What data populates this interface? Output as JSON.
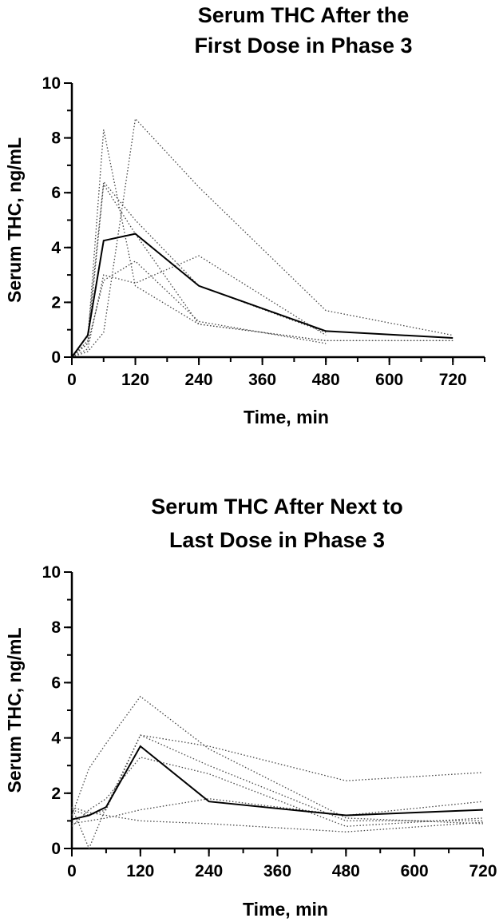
{
  "chart_data": [
    {
      "type": "line",
      "title": "Serum THC After the\nFirst Dose in Phase 3",
      "xlabel": "Time, min",
      "ylabel": "Serum THC, ng/mL",
      "xlim": [
        0,
        780
      ],
      "ylim": [
        0,
        10
      ],
      "xticks": [
        0,
        120,
        240,
        360,
        480,
        600,
        720
      ],
      "yticks": [
        0,
        2,
        4,
        6,
        8,
        10
      ],
      "x_minor_step": 60,
      "y_minor_step": 1,
      "series": [
        {
          "style": "dotted",
          "x": [
            0,
            30,
            60,
            120,
            240,
            480,
            720
          ],
          "y": [
            0,
            0.6,
            8.3,
            2.6,
            1.2,
            0.6,
            0.6
          ]
        },
        {
          "style": "dotted",
          "x": [
            0,
            30,
            60,
            120,
            240,
            480,
            720
          ],
          "y": [
            0,
            0.2,
            0.9,
            8.7,
            6.2,
            1.7,
            0.8
          ]
        },
        {
          "style": "dotted",
          "x": [
            0,
            30,
            60,
            120,
            240,
            480,
            720
          ],
          "y": [
            0,
            0.5,
            6.3,
            4.5,
            1.2,
            0.6,
            0.6
          ]
        },
        {
          "style": "dotted",
          "x": [
            0,
            30,
            60,
            120,
            240,
            480
          ],
          "y": [
            0,
            0.8,
            6.4,
            5.0,
            2.6,
            0.9
          ]
        },
        {
          "style": "dotted",
          "x": [
            0,
            30,
            60,
            120,
            240,
            480
          ],
          "y": [
            0,
            0.5,
            2.8,
            3.5,
            1.3,
            0.5
          ]
        },
        {
          "style": "dotted",
          "x": [
            0,
            30,
            60,
            120,
            240,
            480
          ],
          "y": [
            0,
            0.3,
            3.0,
            2.7,
            3.7,
            0.8
          ]
        },
        {
          "style": "solid",
          "x": [
            0,
            30,
            60,
            120,
            240,
            480,
            720
          ],
          "y": [
            0,
            0.8,
            4.25,
            4.5,
            2.6,
            0.95,
            0.7
          ]
        }
      ]
    },
    {
      "type": "line",
      "title": "Serum THC After Next to\nLast  Dose in Phase 3",
      "xlabel": "Time, min",
      "ylabel": "Serum THC, ng/mL",
      "xlim": [
        0,
        720
      ],
      "ylim": [
        0,
        10
      ],
      "xticks": [
        0,
        120,
        240,
        360,
        480,
        600,
        720
      ],
      "yticks": [
        0,
        2,
        4,
        6,
        8,
        10
      ],
      "x_minor_step": 60,
      "y_minor_step": 1,
      "series": [
        {
          "style": "dotted",
          "x": [
            0,
            30,
            60,
            120,
            240,
            480,
            720
          ],
          "y": [
            1.2,
            2.9,
            3.8,
            5.5,
            3.6,
            1.1,
            0.9
          ]
        },
        {
          "style": "dotted",
          "x": [
            0,
            30,
            60,
            120,
            240,
            480,
            720
          ],
          "y": [
            1.5,
            0,
            1.5,
            4.1,
            3.7,
            2.45,
            2.75
          ]
        },
        {
          "style": "dotted",
          "x": [
            0,
            30,
            60,
            120,
            240,
            480,
            720
          ],
          "y": [
            1.4,
            1.2,
            1.4,
            4.1,
            3.0,
            1.0,
            1.0
          ]
        },
        {
          "style": "dotted",
          "x": [
            0,
            30,
            60,
            120,
            240,
            480,
            720
          ],
          "y": [
            0.9,
            1.0,
            1.1,
            1.4,
            1.8,
            1.2,
            1.7
          ]
        },
        {
          "style": "dotted",
          "x": [
            0,
            30,
            60,
            120,
            240,
            480,
            720
          ],
          "y": [
            1.5,
            1.3,
            1.2,
            1.0,
            0.9,
            0.6,
            0.95
          ]
        },
        {
          "style": "dotted",
          "x": [
            0,
            30,
            60,
            120,
            240,
            480,
            720
          ],
          "y": [
            0.8,
            1.4,
            1.8,
            3.3,
            2.7,
            0.8,
            1.1
          ]
        },
        {
          "style": "solid",
          "x": [
            0,
            30,
            60,
            120,
            240,
            480,
            720
          ],
          "y": [
            1.05,
            1.2,
            1.5,
            3.7,
            1.7,
            1.2,
            1.4
          ]
        }
      ]
    }
  ]
}
